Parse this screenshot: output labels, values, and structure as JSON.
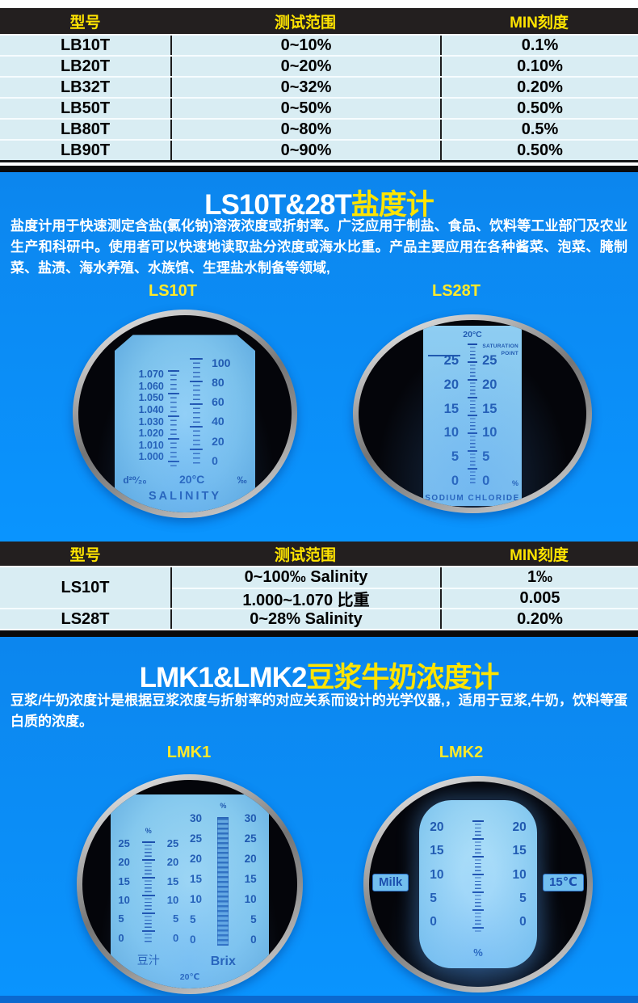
{
  "colors": {
    "accent_yellow": "#ffe400",
    "section_blue": "#0a8ef5",
    "table_row_cyan": "#d9edf3",
    "header_black": "#231f1f"
  },
  "table1": {
    "headers": [
      "型号",
      "测试范围",
      "MIN刻度"
    ],
    "rows": [
      {
        "model": "LB10T",
        "range": "0~10%",
        "min": "0.1%"
      },
      {
        "model": "LB20T",
        "range": "0~20%",
        "min": "0.10%"
      },
      {
        "model": "LB32T",
        "range": "0~32%",
        "min": "0.20%"
      },
      {
        "model": "LB50T",
        "range": "0~50%",
        "min": "0.50%"
      },
      {
        "model": "LB80T",
        "range": "0~80%",
        "min": "0.5%"
      },
      {
        "model": "LB90T",
        "range": "0~90%",
        "min": "0.50%"
      }
    ]
  },
  "section_salinity": {
    "title_model": "LS10T&28T",
    "title_product": "盐度计",
    "description": "盐度计用于快速测定含盐(氯化钠)溶液浓度或折射率。广泛应用于制盐、食品、饮料等工业部门及农业生产和科研中。使用者可以快速地读取盐分浓度或海水比重。产品主要应用在各种酱菜、泡菜、腌制菜、盐渍、海水养殖、水族馆、生理盐水制备等领域,"
  },
  "reticle_ls10t": {
    "label": "LS10T",
    "left_scale": [
      "1.070",
      "1.060",
      "1.050",
      "1.040",
      "1.030",
      "1.020",
      "1.010",
      "1.000"
    ],
    "right_scale": [
      "100",
      "80",
      "60",
      "40",
      "20",
      "0"
    ],
    "footnote": "d²⁰⁄₂₀",
    "temp": "20°C",
    "unit": "‰",
    "caption": "SALINITY"
  },
  "reticle_ls28t": {
    "label": "LS28T",
    "temp": "20°C",
    "note": "SATURATION POINT",
    "scale": [
      "25",
      "20",
      "15",
      "10",
      "5",
      "0"
    ],
    "unit": "%",
    "caption": "SODIUM CHLORIDE"
  },
  "table2": {
    "headers": [
      "型号",
      "测试范围",
      "MIN刻度"
    ],
    "rows": [
      {
        "model": "LS10T",
        "range": "0~100‰ Salinity",
        "min": "1‰"
      },
      {
        "model": "",
        "range": "1.000~1.070 比重",
        "min": "0.005"
      },
      {
        "model": "LS28T",
        "range": "0~28% Salinity",
        "min": "0.20%"
      }
    ]
  },
  "section_milk": {
    "title_model": "LMK1&LMK2",
    "title_product": "豆浆牛奶浓度计",
    "description": "豆浆/牛奶浓度计是根据豆浆浓度与折射率的对应关系而设计的光学仪器,，适用于豆浆,牛奶，饮料等蛋白质的浓度。"
  },
  "reticle_lmk1": {
    "label": "LMK1",
    "left_unit": "%",
    "left_scale": [
      "25",
      "20",
      "15",
      "10",
      "5",
      "0"
    ],
    "left_caption": "豆汁",
    "right_unit": "%",
    "right_scale": [
      "30",
      "25",
      "20",
      "15",
      "10",
      "5",
      "0"
    ],
    "right_caption": "Brix",
    "temp": "20℃"
  },
  "reticle_lmk2": {
    "label": "LMK2",
    "scale": [
      "20",
      "15",
      "10",
      "5",
      "0"
    ],
    "unit": "%",
    "badge_left": "Milk",
    "badge_right": "15℃"
  }
}
